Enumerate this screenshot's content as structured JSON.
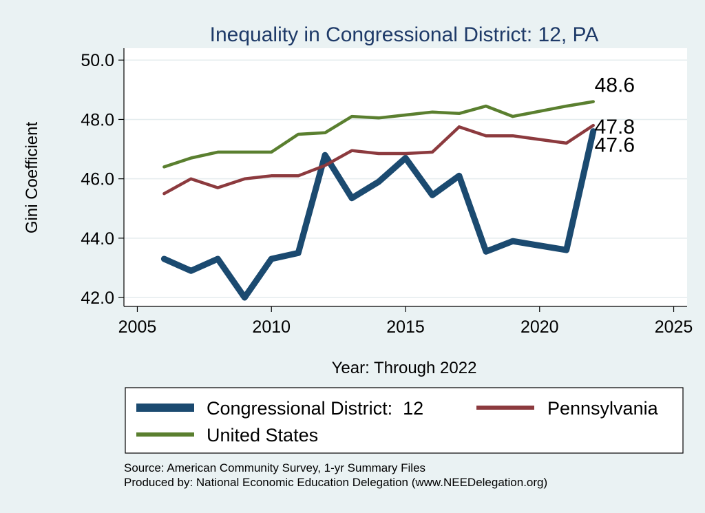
{
  "chart_data": {
    "type": "line",
    "title": "Inequality in Congressional District:  12, PA",
    "xlabel": "Year: Through 2022",
    "ylabel": "Gini Coefficient",
    "xlim": [
      2004.5,
      2025.5
    ],
    "ylim": [
      41.7,
      50.4
    ],
    "x_ticks": [
      2005,
      2010,
      2015,
      2020,
      2025
    ],
    "y_ticks": [
      42.0,
      44.0,
      46.0,
      48.0,
      50.0
    ],
    "grid": true,
    "legend_position": "bottom",
    "series": [
      {
        "name": "Congressional District:  12",
        "color": "#1b4a70",
        "x": [
          2006,
          2007,
          2008,
          2009,
          2010,
          2011,
          2012,
          2013,
          2014,
          2015,
          2016,
          2017,
          2018,
          2019,
          2021,
          2022
        ],
        "values": [
          43.3,
          42.9,
          43.3,
          42.0,
          43.3,
          43.5,
          46.8,
          45.35,
          45.9,
          46.7,
          45.45,
          46.1,
          43.55,
          43.9,
          43.6,
          47.6
        ],
        "end_label": "47.6"
      },
      {
        "name": "Pennsylvania",
        "color": "#8c3a3e",
        "x": [
          2006,
          2007,
          2008,
          2009,
          2010,
          2011,
          2012,
          2013,
          2014,
          2015,
          2016,
          2017,
          2018,
          2019,
          2021,
          2022
        ],
        "values": [
          45.5,
          46.0,
          45.7,
          46.0,
          46.1,
          46.1,
          46.45,
          46.95,
          46.85,
          46.85,
          46.9,
          47.75,
          47.45,
          47.45,
          47.2,
          47.8
        ],
        "end_label": "47.8"
      },
      {
        "name": "United States",
        "color": "#5a7f2f",
        "x": [
          2006,
          2007,
          2008,
          2009,
          2010,
          2011,
          2012,
          2013,
          2014,
          2015,
          2016,
          2017,
          2018,
          2019,
          2021,
          2022
        ],
        "values": [
          46.4,
          46.7,
          46.9,
          46.9,
          46.9,
          47.5,
          47.55,
          48.1,
          48.05,
          48.15,
          48.25,
          48.2,
          48.45,
          48.1,
          48.45,
          48.6
        ],
        "end_label": "48.6"
      }
    ]
  },
  "footer": {
    "source": "Source: American Community Survey, 1-yr Summary Files",
    "produced_by": "Produced by: National Economic Education Delegation (www.NEEDelegation.org)"
  }
}
